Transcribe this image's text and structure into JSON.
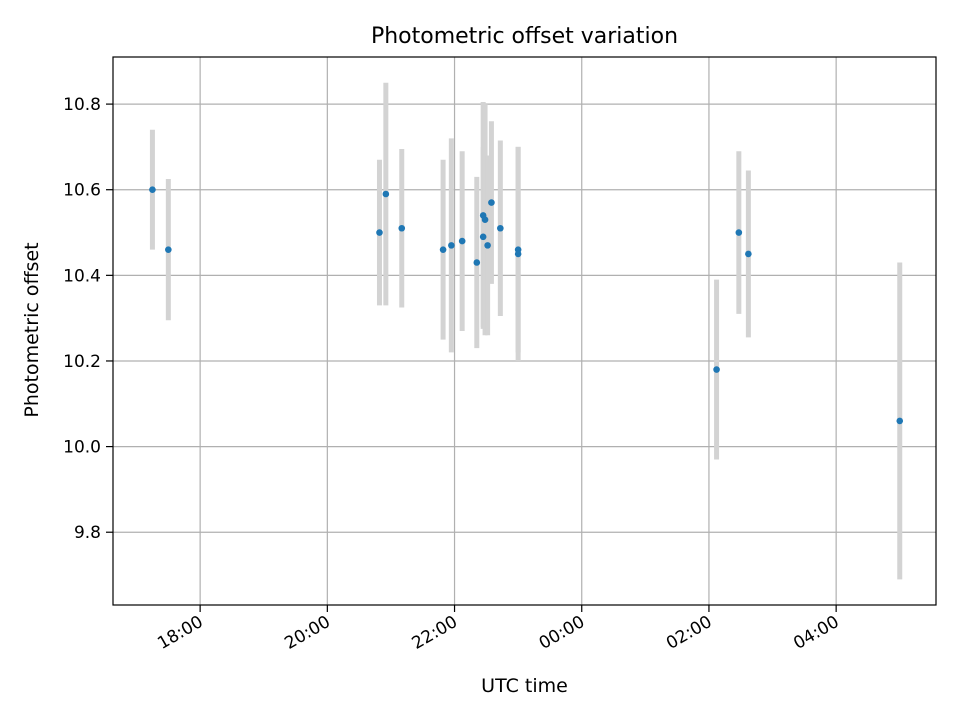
{
  "chart_data": {
    "type": "scatter",
    "title": "Photometric offset variation",
    "xlabel": "UTC time",
    "ylabel": "Photometric offset",
    "grid": true,
    "x_ticks": [
      "18:00",
      "20:00",
      "22:00",
      "00:00",
      "02:00",
      "04:00"
    ],
    "x_tick_hours": [
      18,
      20,
      22,
      24,
      26,
      28
    ],
    "xlim_hours": [
      16.63,
      29.57
    ],
    "y_ticks": [
      "9.8",
      "10.0",
      "10.2",
      "10.4",
      "10.6",
      "10.8"
    ],
    "y_tick_values": [
      9.8,
      10.0,
      10.2,
      10.4,
      10.6,
      10.8
    ],
    "ylim": [
      9.63,
      10.91
    ],
    "colors": {
      "point": "#1f77b4",
      "errorbar": "#d3d3d3",
      "grid": "#b0b0b0"
    },
    "points": [
      {
        "x": 17.25,
        "y": 10.6,
        "err": 0.14
      },
      {
        "x": 17.5,
        "y": 10.46,
        "err": 0.165
      },
      {
        "x": 20.82,
        "y": 10.5,
        "err": 0.17
      },
      {
        "x": 20.92,
        "y": 10.59,
        "err": 0.26
      },
      {
        "x": 21.17,
        "y": 10.51,
        "err": 0.185
      },
      {
        "x": 21.82,
        "y": 10.46,
        "err": 0.21
      },
      {
        "x": 21.95,
        "y": 10.47,
        "err": 0.25
      },
      {
        "x": 22.12,
        "y": 10.48,
        "err": 0.21
      },
      {
        "x": 22.35,
        "y": 10.43,
        "err": 0.2
      },
      {
        "x": 22.45,
        "y": 10.54,
        "err": 0.265
      },
      {
        "x": 22.45,
        "y": 10.49,
        "err": 0.21
      },
      {
        "x": 22.48,
        "y": 10.53,
        "err": 0.27
      },
      {
        "x": 22.52,
        "y": 10.47,
        "err": 0.21
      },
      {
        "x": 22.58,
        "y": 10.57,
        "err": 0.19
      },
      {
        "x": 22.72,
        "y": 10.51,
        "err": 0.205
      },
      {
        "x": 23.0,
        "y": 10.46,
        "err": 0.24
      },
      {
        "x": 23.0,
        "y": 10.45,
        "err": 0.25
      },
      {
        "x": 26.12,
        "y": 10.18,
        "err": 0.21
      },
      {
        "x": 26.47,
        "y": 10.5,
        "err": 0.19
      },
      {
        "x": 26.62,
        "y": 10.45,
        "err": 0.195
      },
      {
        "x": 29.0,
        "y": 10.06,
        "err": 0.37
      }
    ]
  }
}
